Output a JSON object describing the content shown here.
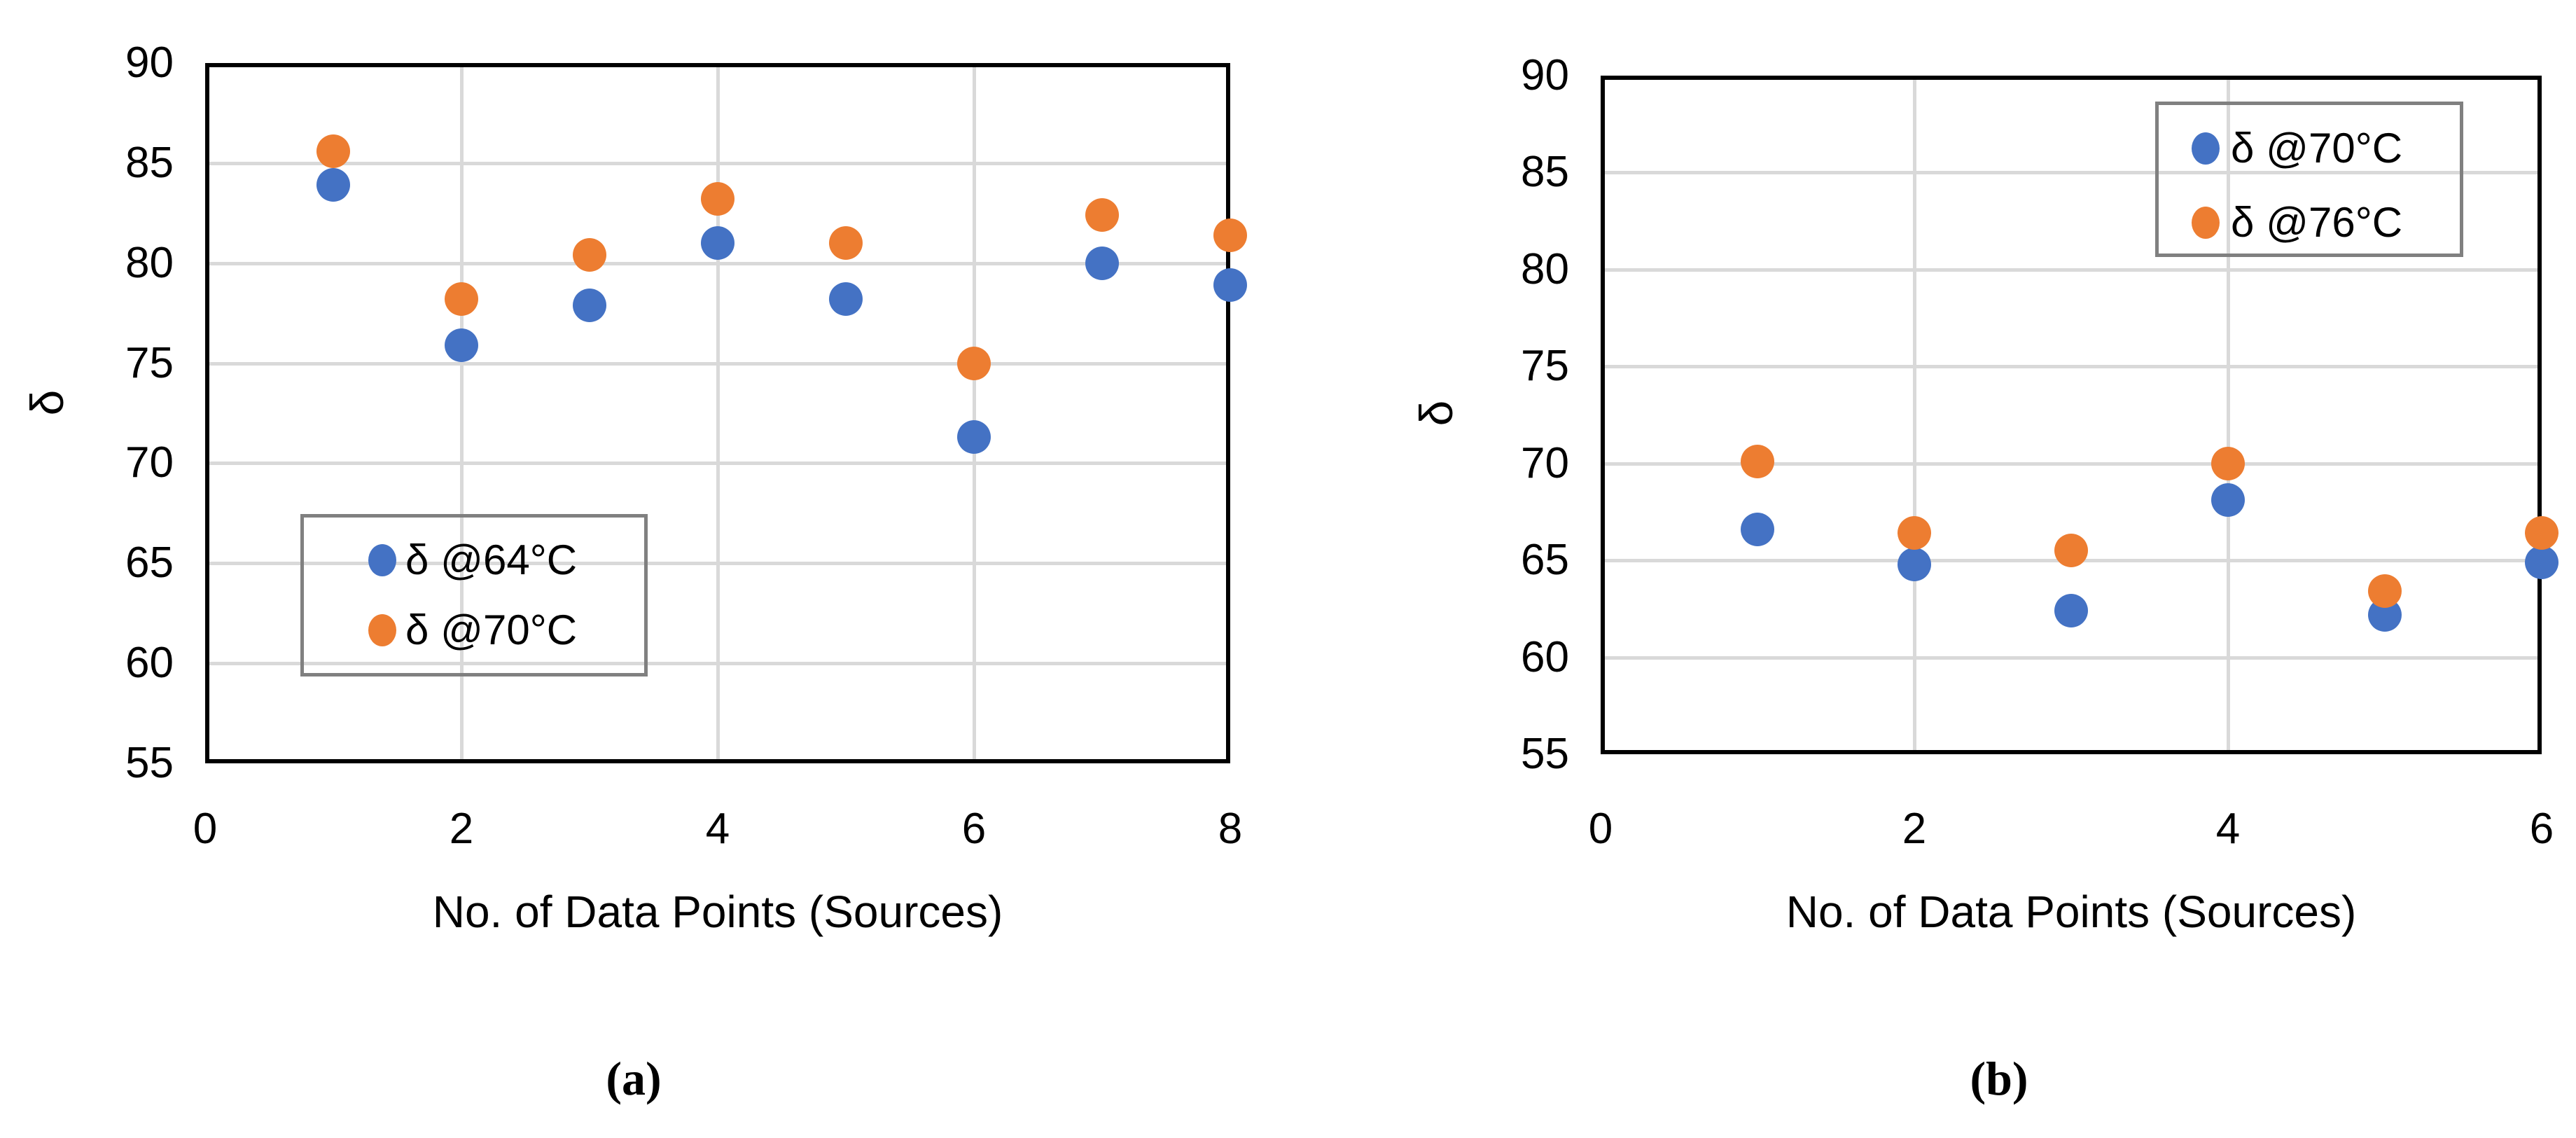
{
  "palette": {
    "series_blue": "#4472C4",
    "series_orange": "#ED7D31",
    "gridline": "#D9D9D9",
    "axis": "#000000",
    "legend_border": "#808080"
  },
  "chart_data": [
    {
      "panel": "a",
      "type": "scatter",
      "caption": "(a)",
      "xlabel": "No. of Data Points (Sources)",
      "ylabel": "δ",
      "xlim": [
        0,
        8
      ],
      "ylim": [
        55,
        90
      ],
      "xticks": [
        0,
        2,
        4,
        6,
        8
      ],
      "yticks": [
        55,
        60,
        65,
        70,
        75,
        80,
        85,
        90
      ],
      "grid": true,
      "legend_position": "bottom-left-inside",
      "series": [
        {
          "name": "δ @64°C",
          "color": "#4472C4",
          "points": [
            [
              1,
              83.9
            ],
            [
              2,
              75.9
            ],
            [
              3,
              77.9
            ],
            [
              4,
              81.0
            ],
            [
              5,
              78.2
            ],
            [
              6,
              71.3
            ],
            [
              7,
              80.0
            ],
            [
              8,
              78.9
            ]
          ]
        },
        {
          "name": "δ @70°C",
          "color": "#ED7D31",
          "points": [
            [
              1,
              85.6
            ],
            [
              2,
              78.2
            ],
            [
              3,
              80.4
            ],
            [
              4,
              83.2
            ],
            [
              5,
              81.0
            ],
            [
              6,
              75.0
            ],
            [
              7,
              82.4
            ],
            [
              8,
              81.4
            ]
          ]
        }
      ]
    },
    {
      "panel": "b",
      "type": "scatter",
      "caption": "(b)",
      "xlabel": "No. of Data Points (Sources)",
      "ylabel": "δ",
      "xlim": [
        0,
        6
      ],
      "ylim": [
        55,
        90
      ],
      "xticks": [
        0,
        2,
        4,
        6
      ],
      "yticks": [
        55,
        60,
        65,
        70,
        75,
        80,
        85,
        90
      ],
      "grid": true,
      "legend_position": "top-right-inside",
      "series": [
        {
          "name": "δ @70°C",
          "color": "#4472C4",
          "points": [
            [
              1,
              66.6
            ],
            [
              2,
              64.8
            ],
            [
              3,
              62.4
            ],
            [
              4,
              68.1
            ],
            [
              5,
              62.2
            ],
            [
              6,
              64.9
            ]
          ]
        },
        {
          "name": "δ @76°C",
          "color": "#ED7D31",
          "points": [
            [
              1,
              70.1
            ],
            [
              2,
              66.4
            ],
            [
              3,
              65.5
            ],
            [
              4,
              70.0
            ],
            [
              5,
              63.4
            ],
            [
              6,
              66.4
            ]
          ]
        }
      ]
    }
  ]
}
